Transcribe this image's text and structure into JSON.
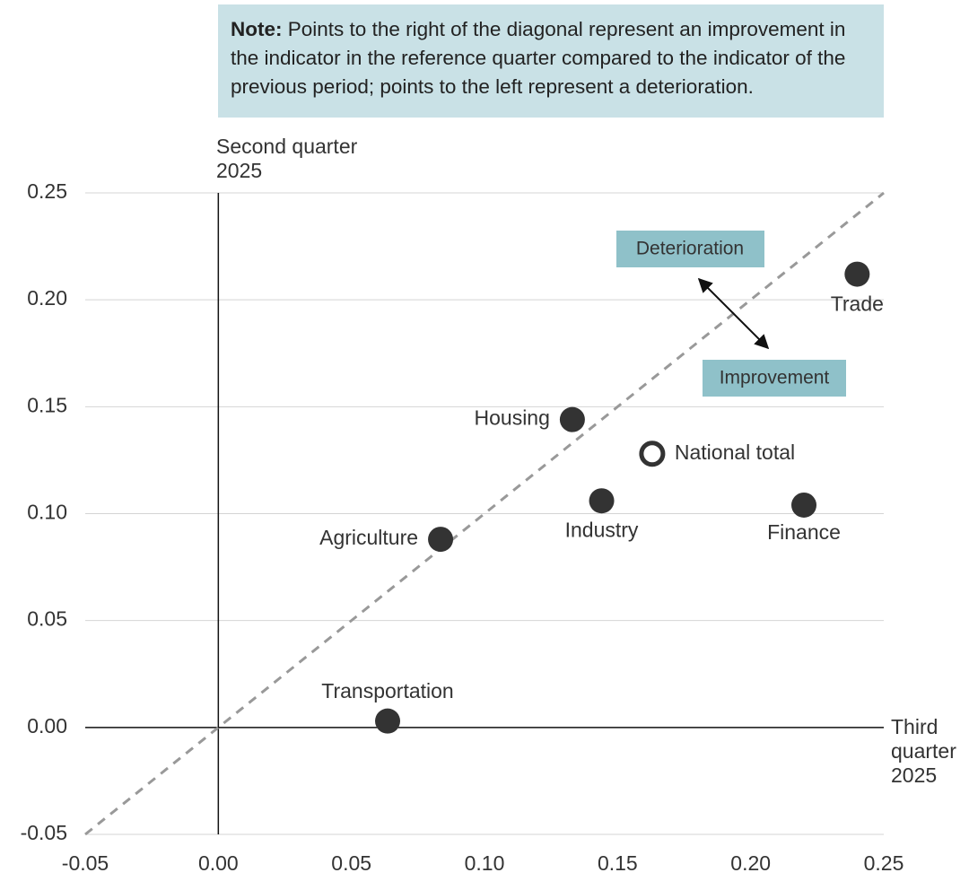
{
  "chart_data": {
    "type": "scatter",
    "note": {
      "label": "Note:",
      "text": "Points to the right of the diagonal represent an improvement in the indicator in the reference quarter compared to the indicator of the previous period; points to the left represent a deterioration."
    },
    "x_label": "Third quarter 2025",
    "y_label": "Second quarter 2025",
    "annotations": [
      "Deterioration",
      "Improvement"
    ],
    "series": [
      {
        "names": [
          "Trade",
          "Housing",
          "National total",
          "Industry",
          "Finance",
          "Agriculture",
          "Transportation"
        ],
        "x": [
          0.24,
          0.133,
          0.163,
          0.144,
          0.22,
          0.0835,
          0.0636
        ],
        "values": [
          0.212,
          0.144,
          0.128,
          0.106,
          0.104,
          0.088,
          0.003
        ],
        "markers": [
          "filled",
          "filled",
          "hollow",
          "filled",
          "filled",
          "filled",
          "filled"
        ],
        "color": "#333333"
      }
    ],
    "xlim": [
      -0.05,
      0.25
    ],
    "ylim": [
      -0.05,
      0.25
    ],
    "xticks": [
      -0.05,
      {
        "value": 0,
        "label": "0.00"
      },
      0.05,
      {
        "value": 0.1,
        "label": "0.10"
      },
      0.15,
      {
        "value": 0.2,
        "label": "0.20"
      },
      0.25
    ],
    "yticks": [
      -0.05,
      {
        "value": 0,
        "label": "0.00"
      },
      0.05,
      {
        "value": 0.1,
        "label": "0.10"
      },
      0.15,
      {
        "value": 0.2,
        "label": "0.20"
      },
      0.25
    ],
    "grid": true,
    "diagonal": true
  }
}
